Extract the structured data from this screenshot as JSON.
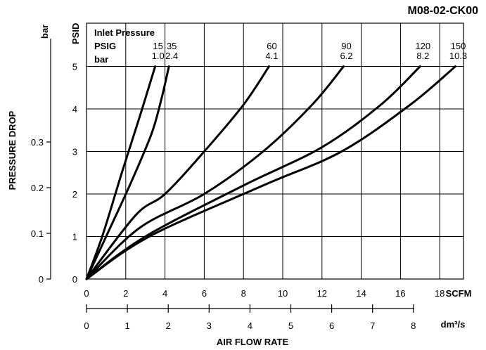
{
  "chart_data": {
    "type": "line",
    "title": "M08-02-CK00",
    "xlabel": "AIR FLOW RATE",
    "x_unit_primary": "SCFM",
    "x_unit_secondary": "dm³/s",
    "ylabel": "PRESSURE DROP",
    "y_unit_primary": "PSID",
    "y_unit_secondary": "bar",
    "xlim": [
      0,
      20
    ],
    "ylim": [
      0,
      5
    ],
    "x_ticks": [
      "0",
      "2",
      "4",
      "6",
      "8",
      "10",
      "12",
      "14",
      "16",
      "18"
    ],
    "x2_ticks": [
      "0",
      "1",
      "2",
      "3",
      "4",
      "5",
      "6",
      "7",
      "8"
    ],
    "y_ticks": [
      "0",
      "1",
      "2",
      "3",
      "4",
      "5"
    ],
    "y2_ticks": [
      "0",
      "0.1",
      "0.2",
      "0.3"
    ],
    "grid": true,
    "legend_header": [
      "Inlet Pressure",
      "PSIG",
      "bar"
    ],
    "series": [
      {
        "name_psig": "15",
        "name_bar": "1.0",
        "x": [
          0,
          0.8,
          1.8,
          2.7,
          3.5
        ],
        "y": [
          0,
          1,
          2.5,
          3.8,
          5
        ]
      },
      {
        "name_psig": "35",
        "name_bar": "2.4",
        "x": [
          0,
          1.0,
          2.2,
          3.3,
          3.8,
          4.2
        ],
        "y": [
          0,
          1,
          2.2,
          3.4,
          4.2,
          5
        ]
      },
      {
        "name_psig": "60",
        "name_bar": "4.1",
        "x": [
          0,
          2.5,
          4.0,
          6.0,
          8.0,
          9.3
        ],
        "y": [
          0,
          1.5,
          2.0,
          3.0,
          4.1,
          5
        ]
      },
      {
        "name_psig": "90",
        "name_bar": "6.2",
        "x": [
          0,
          2.7,
          6.0,
          9.0,
          11.5,
          13.1
        ],
        "y": [
          0,
          1.2,
          2.0,
          3.0,
          4.1,
          5
        ]
      },
      {
        "name_psig": "120",
        "name_bar": "8.2",
        "x": [
          0,
          3.0,
          8.0,
          12.0,
          15.0,
          17.0
        ],
        "y": [
          0,
          1.0,
          2.2,
          3.1,
          4.1,
          5
        ]
      },
      {
        "name_psig": "150",
        "name_bar": "10.3",
        "x": [
          0,
          3.2,
          9.0,
          13.0,
          16.5,
          18.8
        ],
        "y": [
          0,
          1.0,
          2.2,
          3.0,
          4.1,
          5
        ]
      }
    ]
  }
}
